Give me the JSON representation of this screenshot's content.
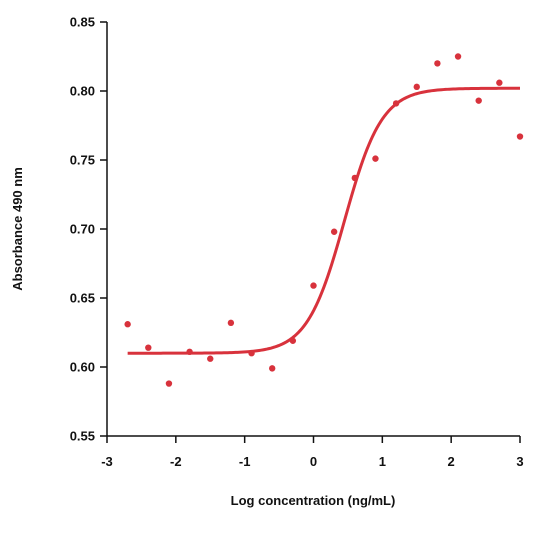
{
  "chart_data": {
    "type": "scatter",
    "title": "",
    "xlabel": "Log concentration (ng/mL)",
    "ylabel": "Absorbance 490 nm",
    "xlim": [
      -3,
      3
    ],
    "ylim": [
      0.55,
      0.85
    ],
    "x_ticks": [
      "-3",
      "-2",
      "-1",
      "0",
      "1",
      "2",
      "3"
    ],
    "y_ticks": [
      "0.55",
      "0.60",
      "0.65",
      "0.70",
      "0.75",
      "0.80",
      "0.85"
    ],
    "grid": false,
    "legend": "none",
    "colors": {
      "points": "#d8323c",
      "fit_line": "#d8323c",
      "axis": "#111111"
    },
    "series": [
      {
        "kind": "points",
        "x": [
          -2.7,
          -2.4,
          -2.1,
          -1.8,
          -1.5,
          -1.2,
          -0.9,
          -0.6,
          -0.3,
          0.0,
          0.3,
          0.6,
          0.9,
          1.2,
          1.5,
          1.8,
          2.1,
          2.4,
          2.7,
          3.0
        ],
        "y": [
          0.631,
          0.614,
          0.588,
          0.611,
          0.606,
          0.632,
          0.61,
          0.599,
          0.619,
          0.659,
          0.698,
          0.737,
          0.751,
          0.791,
          0.803,
          0.82,
          0.825,
          0.793,
          0.806,
          0.767
        ]
      },
      {
        "kind": "fit-curve",
        "model": "4PL-logistic",
        "bottom": 0.61,
        "top": 0.802,
        "midpoint": 0.45,
        "hill_slope": 1.6,
        "x_range": [
          -2.7,
          3.0
        ]
      }
    ]
  }
}
